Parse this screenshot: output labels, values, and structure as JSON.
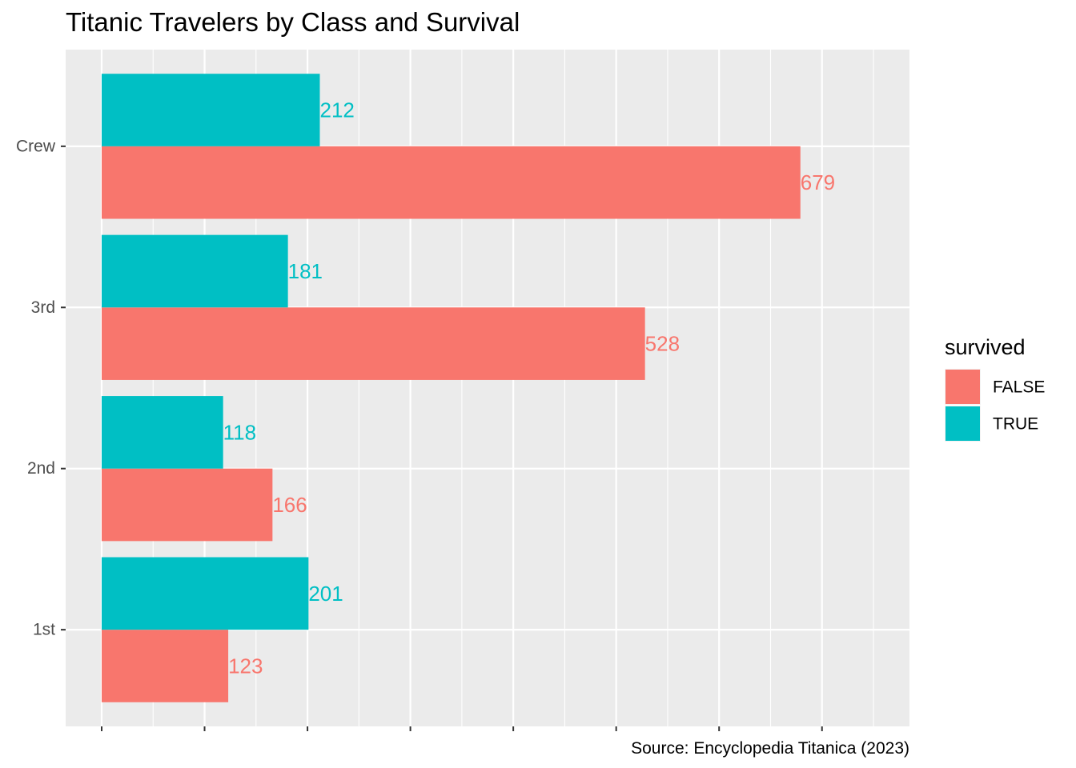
{
  "chart_data": {
    "type": "bar",
    "orientation": "horizontal",
    "title": "Titanic Travelers by Class and Survival",
    "caption": "Source: Encyclopedia Titanica (2023)",
    "categories": [
      "1st",
      "2nd",
      "3rd",
      "Crew"
    ],
    "xlabel": "",
    "ylabel": "",
    "xlim": [
      -35,
      785
    ],
    "grid": true,
    "x_tick_labels_shown": false,
    "legend": {
      "title": "survived",
      "position": "right",
      "entries": [
        "FALSE",
        "TRUE"
      ]
    },
    "series": [
      {
        "name": "FALSE",
        "color": "#F8766D",
        "values": [
          123,
          166,
          528,
          679
        ]
      },
      {
        "name": "TRUE",
        "color": "#00BFC4",
        "values": [
          201,
          118,
          181,
          212
        ]
      }
    ],
    "data_labels": true
  }
}
